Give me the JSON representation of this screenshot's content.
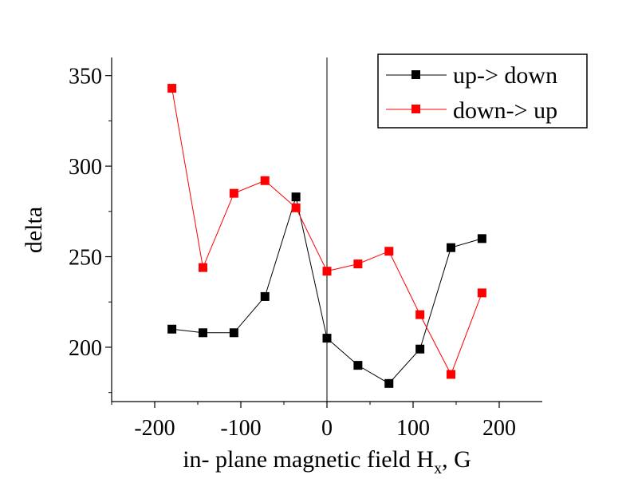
{
  "chart_data": {
    "type": "line",
    "xlabel": "in- plane magnetic field H",
    "xlabel_sub": "x",
    "xlabel_suffix": ", G",
    "ylabel": "delta",
    "xlim": [
      -250,
      250
    ],
    "ylim": [
      170,
      360
    ],
    "xticks": [
      -200,
      -100,
      0,
      100,
      200
    ],
    "xtick_labels": [
      "-200",
      "-100",
      "0",
      "100",
      "200"
    ],
    "yticks": [
      200,
      250,
      300,
      350
    ],
    "ytick_labels": [
      "200",
      "250",
      "300",
      "350"
    ],
    "zero_line": true,
    "grid": false,
    "legend_position": "top-right",
    "series": [
      {
        "name": "up-> down",
        "color": "#000000",
        "marker": "square",
        "x": [
          -180,
          -144,
          -108,
          -72,
          -36,
          0,
          36,
          72,
          108,
          144,
          180
        ],
        "y": [
          210,
          208,
          208,
          228,
          283,
          205,
          190,
          180,
          199,
          255,
          260
        ]
      },
      {
        "name": "down-> up",
        "color": "#ff0000",
        "marker": "square",
        "x": [
          -180,
          -144,
          -108,
          -72,
          -36,
          0,
          36,
          72,
          108,
          144,
          180
        ],
        "y": [
          343,
          244,
          285,
          292,
          277,
          242,
          246,
          253,
          218,
          185,
          230
        ]
      }
    ]
  }
}
